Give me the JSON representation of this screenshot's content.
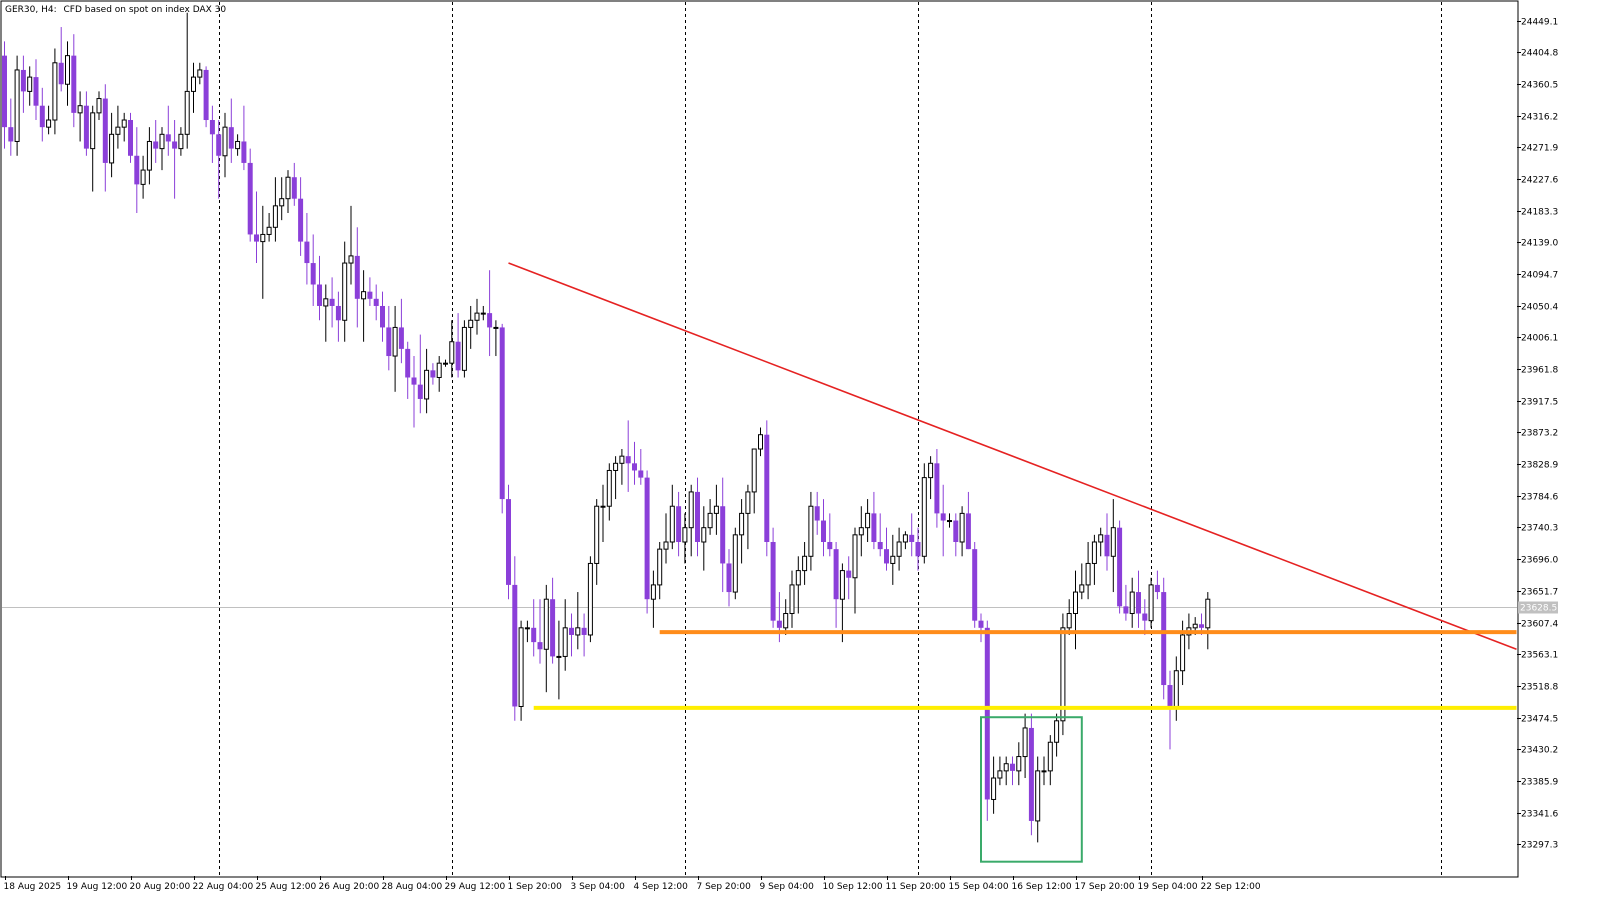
{
  "header": {
    "symbol": "GER30, H4:",
    "description": "CFD based on spot on index DAX 30"
  },
  "colors": {
    "bear": "#8b3fd9",
    "bull_outline": "#000000",
    "bull_fill": "#ffffff",
    "grid": "#000000",
    "trendline": "#e52222",
    "resistance": "#ff8c1a",
    "support": "#ffee00",
    "box": "#3aaa6a",
    "current_price_line": "#c0c0c0",
    "price_tag_bg": "#c0c0c0"
  },
  "chart_data": {
    "type": "candlestick",
    "title": "",
    "symbol": "GER30",
    "timeframe": "H4",
    "xlabel": "",
    "ylabel": "",
    "ylim": [
      23253.0,
      24475.0
    ],
    "y_ticks": [
      "24449.1",
      "24404.8",
      "24360.5",
      "24316.2",
      "24271.9",
      "24227.6",
      "24183.3",
      "24139.0",
      "24094.7",
      "24050.4",
      "24006.1",
      "23961.8",
      "23917.5",
      "23873.2",
      "23828.9",
      "23784.6",
      "23740.3",
      "23696.0",
      "23651.7",
      "23607.4",
      "23563.1",
      "23518.8",
      "23474.5",
      "23430.2",
      "23385.9",
      "23341.6",
      "23297.3"
    ],
    "x_labels": [
      {
        "bar": 0,
        "label": "18 Aug 2025"
      },
      {
        "bar": 10,
        "label": "19 Aug 12:00"
      },
      {
        "bar": 20,
        "label": "20 Aug 20:00"
      },
      {
        "bar": 30,
        "label": "22 Aug 04:00"
      },
      {
        "bar": 40,
        "label": "25 Aug 12:00"
      },
      {
        "bar": 50,
        "label": "26 Aug 20:00"
      },
      {
        "bar": 60,
        "label": "28 Aug 04:00"
      },
      {
        "bar": 70,
        "label": "29 Aug 12:00"
      },
      {
        "bar": 80,
        "label": "1 Sep 20:00"
      },
      {
        "bar": 90,
        "label": "3 Sep 04:00"
      },
      {
        "bar": 100,
        "label": "4 Sep 12:00"
      },
      {
        "bar": 110,
        "label": "7 Sep 20:00"
      },
      {
        "bar": 120,
        "label": "9 Sep 04:00"
      },
      {
        "bar": 130,
        "label": "10 Sep 12:00"
      },
      {
        "bar": 140,
        "label": "11 Sep 20:00"
      },
      {
        "bar": 150,
        "label": "15 Sep 04:00"
      },
      {
        "bar": 160,
        "label": "16 Sep 12:00"
      },
      {
        "bar": 170,
        "label": "17 Sep 20:00"
      },
      {
        "bar": 180,
        "label": "19 Sep 04:00"
      },
      {
        "bar": 190,
        "label": "22 Sep 12:00"
      }
    ],
    "period_separators": [
      34,
      71,
      108,
      145,
      182,
      228
    ],
    "current_price": 23628.5,
    "candles": [
      [
        24400,
        24420,
        24270,
        24300
      ],
      [
        24300,
        24340,
        24260,
        24280
      ],
      [
        24280,
        24400,
        24260,
        24380
      ],
      [
        24380,
        24400,
        24320,
        24350
      ],
      [
        24350,
        24385,
        24330,
        24370
      ],
      [
        24370,
        24395,
        24310,
        24330
      ],
      [
        24330,
        24355,
        24280,
        24300
      ],
      [
        24300,
        24330,
        24290,
        24310
      ],
      [
        24310,
        24410,
        24290,
        24390
      ],
      [
        24390,
        24440,
        24350,
        24360
      ],
      [
        24360,
        24420,
        24330,
        24400
      ],
      [
        24400,
        24430,
        24300,
        24320
      ],
      [
        24320,
        24350,
        24280,
        24330
      ],
      [
        24330,
        24350,
        24260,
        24270
      ],
      [
        24270,
        24330,
        24210,
        24320
      ],
      [
        24320,
        24350,
        24310,
        24340
      ],
      [
        24340,
        24360,
        24210,
        24250
      ],
      [
        24250,
        24320,
        24230,
        24290
      ],
      [
        24290,
        24330,
        24270,
        24300
      ],
      [
        24300,
        24320,
        24280,
        24310
      ],
      [
        24310,
        24320,
        24250,
        24260
      ],
      [
        24260,
        24300,
        24180,
        24220
      ],
      [
        24220,
        24260,
        24200,
        24240
      ],
      [
        24240,
        24300,
        24220,
        24280
      ],
      [
        24280,
        24310,
        24250,
        24270
      ],
      [
        24270,
        24300,
        24240,
        24290
      ],
      [
        24290,
        24330,
        24260,
        24280
      ],
      [
        24280,
        24310,
        24200,
        24270
      ],
      [
        24270,
        24300,
        24260,
        24290
      ],
      [
        24290,
        24460,
        24270,
        24350
      ],
      [
        24350,
        24390,
        24320,
        24370
      ],
      [
        24370,
        24390,
        24360,
        24380
      ],
      [
        24380,
        24385,
        24300,
        24310
      ],
      [
        24310,
        24330,
        24250,
        24290
      ],
      [
        24290,
        24310,
        24200,
        24260
      ],
      [
        24260,
        24320,
        24230,
        24300
      ],
      [
        24300,
        24340,
        24250,
        24270
      ],
      [
        24270,
        24290,
        24260,
        24280
      ],
      [
        24280,
        24330,
        24240,
        24250
      ],
      [
        24250,
        24270,
        24140,
        24150
      ],
      [
        24150,
        24210,
        24110,
        24140
      ],
      [
        24140,
        24190,
        24060,
        24150
      ],
      [
        24150,
        24180,
        24140,
        24160
      ],
      [
        24160,
        24230,
        24140,
        24190
      ],
      [
        24190,
        24230,
        24170,
        24200
      ],
      [
        24200,
        24240,
        24180,
        24230
      ],
      [
        24230,
        24250,
        24190,
        24200
      ],
      [
        24200,
        24230,
        24120,
        24140
      ],
      [
        24140,
        24180,
        24080,
        24110
      ],
      [
        24110,
        24150,
        24050,
        24080
      ],
      [
        24080,
        24120,
        24030,
        24050
      ],
      [
        24050,
        24080,
        24000,
        24060
      ],
      [
        24060,
        24090,
        24020,
        24050
      ],
      [
        24050,
        24070,
        24000,
        24030
      ],
      [
        24030,
        24140,
        24000,
        24110
      ],
      [
        24110,
        24190,
        24080,
        24120
      ],
      [
        24120,
        24160,
        24020,
        24060
      ],
      [
        24060,
        24100,
        24000,
        24070
      ],
      [
        24070,
        24090,
        24050,
        24060
      ],
      [
        24060,
        24080,
        24030,
        24050
      ],
      [
        24050,
        24070,
        24000,
        24020
      ],
      [
        24020,
        24050,
        23960,
        23980
      ],
      [
        23980,
        24050,
        23930,
        24020
      ],
      [
        24020,
        24060,
        23970,
        23990
      ],
      [
        23990,
        24000,
        23920,
        23950
      ],
      [
        23950,
        23980,
        23880,
        23940
      ],
      [
        23940,
        24010,
        23900,
        23920
      ],
      [
        23920,
        23990,
        23900,
        23960
      ],
      [
        23960,
        23970,
        23940,
        23950
      ],
      [
        23950,
        23980,
        23930,
        23970
      ],
      [
        23970,
        23975,
        23965,
        23970
      ],
      [
        23970,
        24030,
        23950,
        24000
      ],
      [
        24000,
        24040,
        23950,
        23960
      ],
      [
        23960,
        24030,
        23950,
        24020
      ],
      [
        24020,
        24050,
        23990,
        24030
      ],
      [
        24030,
        24060,
        24010,
        24040
      ],
      [
        24040,
        24050,
        24030,
        24040
      ],
      [
        24040,
        24100,
        23980,
        24020
      ],
      [
        24020,
        24030,
        23980,
        24020
      ],
      [
        24020,
        24025,
        23760,
        23780
      ],
      [
        23780,
        23800,
        23640,
        23660
      ],
      [
        23660,
        23700,
        23470,
        23490
      ],
      [
        23490,
        23610,
        23470,
        23600
      ],
      [
        23600,
        23610,
        23580,
        23600
      ],
      [
        23600,
        23640,
        23560,
        23580
      ],
      [
        23580,
        23640,
        23550,
        23570
      ],
      [
        23570,
        23660,
        23510,
        23640
      ],
      [
        23640,
        23670,
        23550,
        23560
      ],
      [
        23560,
        23610,
        23500,
        23560
      ],
      [
        23560,
        23640,
        23540,
        23600
      ],
      [
        23600,
        23620,
        23560,
        23590
      ],
      [
        23590,
        23650,
        23570,
        23600
      ],
      [
        23600,
        23620,
        23560,
        23590
      ],
      [
        23590,
        23700,
        23580,
        23690
      ],
      [
        23690,
        23780,
        23660,
        23770
      ],
      [
        23770,
        23800,
        23720,
        23770
      ],
      [
        23770,
        23830,
        23750,
        23820
      ],
      [
        23820,
        23840,
        23780,
        23830
      ],
      [
        23830,
        23850,
        23800,
        23840
      ],
      [
        23840,
        23890,
        23790,
        23830
      ],
      [
        23830,
        23860,
        23800,
        23820
      ],
      [
        23820,
        23850,
        23800,
        23810
      ],
      [
        23810,
        23820,
        23620,
        23640
      ],
      [
        23640,
        23680,
        23600,
        23660
      ],
      [
        23660,
        23720,
        23640,
        23710
      ],
      [
        23710,
        23760,
        23690,
        23720
      ],
      [
        23720,
        23800,
        23710,
        23770
      ],
      [
        23770,
        23790,
        23700,
        23720
      ],
      [
        23720,
        23760,
        23690,
        23740
      ],
      [
        23740,
        23800,
        23700,
        23790
      ],
      [
        23790,
        23810,
        23700,
        23720
      ],
      [
        23720,
        23770,
        23680,
        23740
      ],
      [
        23740,
        23780,
        23730,
        23760
      ],
      [
        23760,
        23800,
        23730,
        23770
      ],
      [
        23770,
        23810,
        23650,
        23690
      ],
      [
        23690,
        23710,
        23630,
        23650
      ],
      [
        23650,
        23740,
        23640,
        23730
      ],
      [
        23730,
        23780,
        23690,
        23760
      ],
      [
        23760,
        23800,
        23710,
        23790
      ],
      [
        23790,
        23850,
        23760,
        23850
      ],
      [
        23850,
        23880,
        23840,
        23870
      ],
      [
        23870,
        23890,
        23700,
        23720
      ],
      [
        23720,
        23740,
        23600,
        23610
      ],
      [
        23610,
        23650,
        23580,
        23600
      ],
      [
        23600,
        23640,
        23590,
        23620
      ],
      [
        23620,
        23680,
        23600,
        23660
      ],
      [
        23660,
        23700,
        23620,
        23680
      ],
      [
        23680,
        23720,
        23660,
        23700
      ],
      [
        23700,
        23790,
        23680,
        23770
      ],
      [
        23770,
        23790,
        23730,
        23750
      ],
      [
        23750,
        23780,
        23700,
        23720
      ],
      [
        23720,
        23760,
        23700,
        23710
      ],
      [
        23710,
        23720,
        23600,
        23640
      ],
      [
        23640,
        23690,
        23580,
        23680
      ],
      [
        23680,
        23700,
        23640,
        23670
      ],
      [
        23670,
        23740,
        23620,
        23730
      ],
      [
        23730,
        23770,
        23700,
        23740
      ],
      [
        23740,
        23780,
        23720,
        23760
      ],
      [
        23760,
        23790,
        23710,
        23720
      ],
      [
        23720,
        23760,
        23700,
        23710
      ],
      [
        23710,
        23740,
        23680,
        23690
      ],
      [
        23690,
        23730,
        23660,
        23700
      ],
      [
        23700,
        23740,
        23680,
        23720
      ],
      [
        23720,
        23735,
        23710,
        23730
      ],
      [
        23730,
        23760,
        23700,
        23720
      ],
      [
        23720,
        23740,
        23680,
        23700
      ],
      [
        23700,
        23830,
        23690,
        23810
      ],
      [
        23810,
        23840,
        23780,
        23830
      ],
      [
        23830,
        23850,
        23740,
        23760
      ],
      [
        23760,
        23800,
        23700,
        23750
      ],
      [
        23750,
        23760,
        23740,
        23750
      ],
      [
        23750,
        23760,
        23700,
        23720
      ],
      [
        23720,
        23770,
        23700,
        23760
      ],
      [
        23760,
        23790,
        23710,
        23710
      ],
      [
        23710,
        23720,
        23600,
        23610
      ],
      [
        23610,
        23620,
        23580,
        23600
      ],
      [
        23600,
        23610,
        23330,
        23360
      ],
      [
        23360,
        23420,
        23340,
        23390
      ],
      [
        23390,
        23420,
        23380,
        23400
      ],
      [
        23400,
        23420,
        23380,
        23410
      ],
      [
        23410,
        23420,
        23380,
        23400
      ],
      [
        23400,
        23440,
        23380,
        23420
      ],
      [
        23420,
        23480,
        23390,
        23460
      ],
      [
        23460,
        23480,
        23310,
        23330
      ],
      [
        23330,
        23420,
        23300,
        23400
      ],
      [
        23400,
        23420,
        23380,
        23400
      ],
      [
        23400,
        23450,
        23380,
        23440
      ],
      [
        23440,
        23480,
        23420,
        23470
      ],
      [
        23470,
        23620,
        23450,
        23600
      ],
      [
        23600,
        23640,
        23590,
        23620
      ],
      [
        23620,
        23680,
        23570,
        23650
      ],
      [
        23650,
        23690,
        23640,
        23660
      ],
      [
        23660,
        23720,
        23640,
        23690
      ],
      [
        23690,
        23730,
        23660,
        23720
      ],
      [
        23720,
        23740,
        23700,
        23730
      ],
      [
        23730,
        23760,
        23680,
        23700
      ],
      [
        23700,
        23780,
        23650,
        23740
      ],
      [
        23740,
        23750,
        23620,
        23630
      ],
      [
        23630,
        23660,
        23610,
        23620
      ],
      [
        23620,
        23670,
        23600,
        23650
      ],
      [
        23650,
        23680,
        23600,
        23620
      ],
      [
        23620,
        23640,
        23590,
        23610
      ],
      [
        23610,
        23670,
        23600,
        23660
      ],
      [
        23660,
        23680,
        23640,
        23650
      ],
      [
        23650,
        23670,
        23500,
        23520
      ],
      [
        23520,
        23540,
        23430,
        23490
      ],
      [
        23490,
        23560,
        23470,
        23540
      ],
      [
        23540,
        23610,
        23520,
        23590
      ],
      [
        23590,
        23620,
        23570,
        23600
      ],
      [
        23600,
        23615,
        23590,
        23605
      ],
      [
        23605,
        23620,
        23590,
        23600
      ],
      [
        23600,
        23650,
        23570,
        23640
      ]
    ],
    "annotations": {
      "trendline": {
        "start": {
          "bar": 80,
          "price": 24110
        },
        "end": {
          "bar": 240,
          "price": 23570
        }
      },
      "resistance": {
        "price": 23594,
        "from_bar": 104,
        "to_bar": 240
      },
      "support": {
        "price": 23488,
        "from_bar": 84,
        "to_bar": 240
      },
      "box": {
        "from_bar": 155,
        "to_bar": 171,
        "price_top": 23475,
        "price_bottom": 23273
      }
    }
  }
}
